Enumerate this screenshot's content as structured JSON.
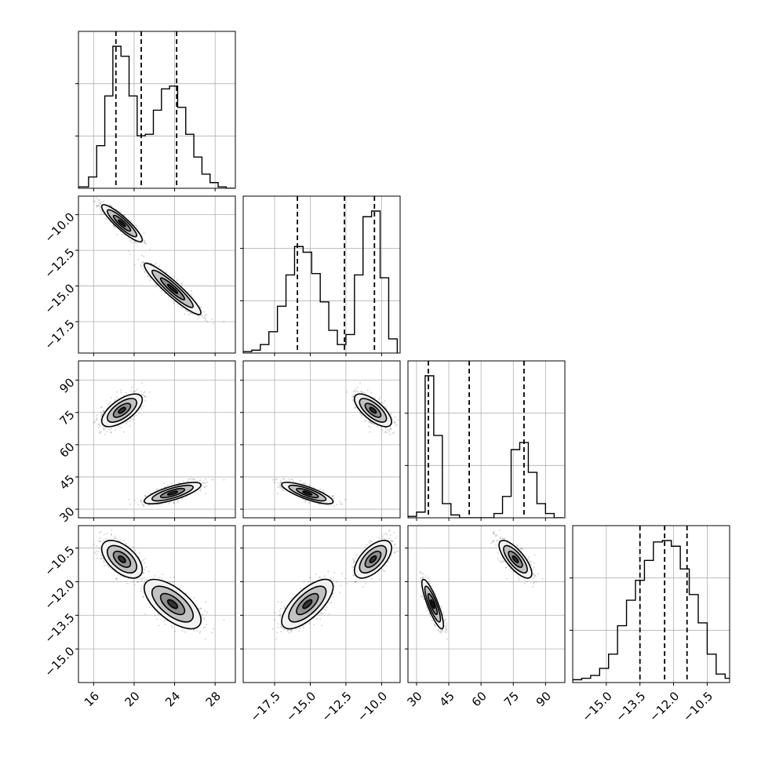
{
  "chart_data": {
    "type": "corner",
    "grid": true,
    "parameters": [
      {
        "range": [
          14.5,
          30
        ],
        "ticks": [
          16,
          20,
          24,
          28
        ],
        "tick_labels": [
          "16",
          "20",
          "24",
          "28"
        ],
        "quantiles": [
          18.2,
          20.7,
          24.2
        ]
      },
      {
        "range": [
          -19.7,
          -8.7
        ],
        "ticks": [
          -17.5,
          -15.0,
          -12.5,
          -10.0
        ],
        "tick_labels": [
          "−17.5",
          "−15.0",
          "−12.5",
          "−10.0"
        ],
        "quantiles": [
          -15.9,
          -12.6,
          -10.5
        ]
      },
      {
        "range": [
          26,
          99
        ],
        "ticks": [
          30,
          45,
          60,
          75,
          90
        ],
        "tick_labels": [
          "30",
          "45",
          "60",
          "75",
          "90"
        ],
        "quantiles": [
          35.5,
          54.5,
          80.0
        ]
      },
      {
        "range": [
          -16.5,
          -9.5
        ],
        "ticks": [
          -15.0,
          -13.5,
          -12.0,
          -10.5
        ],
        "tick_labels": [
          "−15.0",
          "−13.5",
          "−12.0",
          "−10.5"
        ],
        "quantiles": [
          -13.5,
          -12.4,
          -11.4
        ]
      }
    ],
    "histograms": [
      {
        "bins": [
          14.5,
          15.5,
          16.3,
          17.1,
          17.9,
          18.7,
          19.5,
          20.3,
          21.1,
          21.9,
          22.7,
          23.5,
          24.3,
          25.1,
          25.9,
          26.7,
          27.5,
          28.3,
          29.1,
          29.9
        ],
        "counts": [
          0.01,
          0.08,
          0.3,
          0.65,
          1.0,
          0.93,
          0.65,
          0.37,
          0.38,
          0.55,
          0.7,
          0.72,
          0.57,
          0.38,
          0.22,
          0.1,
          0.04,
          0.01,
          0.0
        ]
      },
      {
        "bins": [
          -19.7,
          -19.1,
          -18.5,
          -17.9,
          -17.3,
          -16.7,
          -16.1,
          -15.5,
          -14.9,
          -14.3,
          -13.7,
          -13.1,
          -12.5,
          -11.9,
          -11.3,
          -10.7,
          -10.1,
          -9.5,
          -8.9
        ],
        "counts": [
          0.01,
          0.02,
          0.06,
          0.15,
          0.33,
          0.55,
          0.75,
          0.71,
          0.56,
          0.36,
          0.16,
          0.06,
          0.13,
          0.55,
          0.96,
          1.0,
          0.53,
          0.1
        ]
      },
      {
        "bins": [
          26,
          30,
          34,
          38,
          42,
          46,
          50,
          54,
          58,
          62,
          66,
          70,
          74,
          78,
          82,
          86,
          90,
          94,
          98
        ],
        "counts": [
          0.01,
          0.04,
          1.0,
          0.58,
          0.1,
          0.02,
          0.0,
          0.0,
          0.0,
          0.0,
          0.03,
          0.15,
          0.48,
          0.53,
          0.32,
          0.1,
          0.03,
          0.0
        ]
      },
      {
        "bins": [
          -16.5,
          -16.1,
          -15.7,
          -15.3,
          -14.9,
          -14.5,
          -14.1,
          -13.7,
          -13.3,
          -12.9,
          -12.5,
          -12.1,
          -11.7,
          -11.3,
          -10.9,
          -10.5,
          -10.1,
          -9.7,
          -9.3
        ],
        "counts": [
          0.02,
          0.03,
          0.05,
          0.1,
          0.2,
          0.4,
          0.58,
          0.72,
          0.86,
          0.99,
          1.0,
          0.96,
          0.8,
          0.62,
          0.42,
          0.2,
          0.06,
          0.03
        ]
      }
    ],
    "clusters": [
      {
        "weight": 0.5,
        "mean": [
          18.8,
          -10.6,
          76.0,
          -11.0
        ],
        "sd": [
          1.0,
          0.65,
          3.8,
          0.42
        ],
        "corr": [
          [
            1,
            -0.9,
            0.65,
            -0.55
          ],
          [
            -0.9,
            1,
            -0.7,
            0.6
          ],
          [
            0.65,
            -0.7,
            1,
            -0.75
          ],
          [
            -0.55,
            0.6,
            -0.75,
            1
          ]
        ]
      },
      {
        "weight": 0.5,
        "mean": [
          23.8,
          -15.2,
          37.5,
          -13.0
        ],
        "sd": [
          1.4,
          0.9,
          2.5,
          0.55
        ],
        "corr": [
          [
            1,
            -0.93,
            0.75,
            -0.65
          ],
          [
            -0.93,
            1,
            -0.8,
            0.7
          ],
          [
            0.75,
            -0.8,
            1,
            -0.85
          ],
          [
            -0.65,
            0.7,
            -0.85,
            1
          ]
        ]
      }
    ]
  }
}
